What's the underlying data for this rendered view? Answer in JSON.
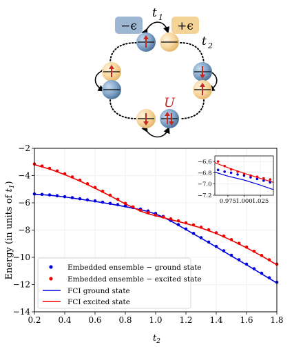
{
  "diagram": {
    "site_energy_minus": "−ϵ",
    "site_energy_plus": "+ϵ",
    "hopping_1": "t",
    "hopping_1_sub": "1",
    "hopping_2": "t",
    "hopping_2_sub": "2",
    "interaction": "U"
  },
  "chart_data": [
    {
      "type": "line",
      "xlabel": "t",
      "xlabel_sub": "2",
      "ylabel": "Energy (in units of ",
      "ylabel_unit": "t",
      "ylabel_unit_sub": "1",
      "ylabel_close": ")",
      "xlim": [
        0.2,
        1.8
      ],
      "ylim": [
        -14,
        -2
      ],
      "xticks": [
        "0.2",
        "0.4",
        "0.6",
        "0.8",
        "1.0",
        "1.2",
        "1.4",
        "1.6",
        "1.8"
      ],
      "yticks": [
        "−14",
        "−12",
        "−10",
        "−8",
        "−6",
        "−4",
        "−2"
      ],
      "grid": true,
      "legend_position": "lower-left",
      "series": [
        {
          "name": "Embedded ensemble − ground state",
          "kind": "points",
          "color": "#0000dd",
          "x": [
            0.2,
            0.25,
            0.3,
            0.35,
            0.4,
            0.45,
            0.5,
            0.55,
            0.6,
            0.65,
            0.7,
            0.75,
            0.8,
            0.85,
            0.9,
            0.95,
            1.0,
            1.05,
            1.1,
            1.15,
            1.2,
            1.25,
            1.3,
            1.35,
            1.4,
            1.45,
            1.5,
            1.55,
            1.6,
            1.65,
            1.7,
            1.75,
            1.8
          ],
          "y": [
            -5.35,
            -5.38,
            -5.42,
            -5.48,
            -5.55,
            -5.62,
            -5.7,
            -5.78,
            -5.86,
            -5.95,
            -6.04,
            -6.13,
            -6.23,
            -6.34,
            -6.46,
            -6.6,
            -6.78,
            -7.0,
            -7.3,
            -7.6,
            -7.92,
            -8.24,
            -8.56,
            -8.88,
            -9.2,
            -9.52,
            -9.85,
            -10.18,
            -10.5,
            -10.84,
            -11.17,
            -11.5,
            -11.83
          ]
        },
        {
          "name": "Embedded ensemble − excited state",
          "kind": "points",
          "color": "#ee0000",
          "x": [
            0.2,
            0.25,
            0.3,
            0.35,
            0.4,
            0.45,
            0.5,
            0.55,
            0.6,
            0.65,
            0.7,
            0.75,
            0.8,
            0.85,
            0.9,
            0.95,
            1.0,
            1.05,
            1.1,
            1.15,
            1.2,
            1.25,
            1.3,
            1.35,
            1.4,
            1.45,
            1.5,
            1.55,
            1.6,
            1.65,
            1.7,
            1.75,
            1.8
          ],
          "y": [
            -3.15,
            -3.3,
            -3.47,
            -3.66,
            -3.87,
            -4.1,
            -4.34,
            -4.6,
            -4.87,
            -5.15,
            -5.44,
            -5.74,
            -6.04,
            -6.3,
            -6.55,
            -6.72,
            -6.9,
            -7.04,
            -7.18,
            -7.32,
            -7.47,
            -7.62,
            -7.79,
            -7.98,
            -8.2,
            -8.44,
            -8.7,
            -8.97,
            -9.25,
            -9.55,
            -9.86,
            -10.18,
            -10.5
          ]
        },
        {
          "name": "FCI ground state",
          "kind": "line",
          "color": "#0000dd",
          "x": [
            0.2,
            0.3,
            0.4,
            0.5,
            0.6,
            0.7,
            0.8,
            0.9,
            0.95,
            1.0,
            1.05,
            1.1,
            1.2,
            1.3,
            1.4,
            1.5,
            1.6,
            1.7,
            1.8
          ],
          "y": [
            -5.37,
            -5.44,
            -5.57,
            -5.73,
            -5.9,
            -6.08,
            -6.28,
            -6.5,
            -6.64,
            -6.82,
            -7.05,
            -7.33,
            -7.96,
            -8.6,
            -9.24,
            -9.9,
            -10.55,
            -11.22,
            -11.88
          ]
        },
        {
          "name": "FCI excited state",
          "kind": "line",
          "color": "#ee0000",
          "x": [
            0.2,
            0.3,
            0.4,
            0.5,
            0.6,
            0.7,
            0.8,
            0.9,
            0.95,
            1.0,
            1.05,
            1.1,
            1.2,
            1.3,
            1.4,
            1.5,
            1.6,
            1.7,
            1.8
          ],
          "y": [
            -3.2,
            -3.52,
            -3.93,
            -4.4,
            -4.93,
            -5.49,
            -6.08,
            -6.6,
            -6.8,
            -6.95,
            -7.09,
            -7.23,
            -7.52,
            -7.84,
            -8.25,
            -8.75,
            -9.3,
            -9.9,
            -10.55
          ]
        }
      ]
    },
    {
      "type": "line",
      "role": "inset",
      "xlim": [
        0.955,
        1.045
      ],
      "ylim": [
        -7.2,
        -6.5
      ],
      "xticks": [
        "0.975",
        "1.000",
        "1.025"
      ],
      "yticks": [
        "−6.6",
        "−6.8",
        "−7.0",
        "−7.2"
      ],
      "grid": true,
      "series": [
        {
          "name": "Embedded ensemble − ground state",
          "kind": "points",
          "color": "#0000dd",
          "x": [
            0.96,
            0.97,
            0.98,
            0.99,
            1.0,
            1.01,
            1.02,
            1.03,
            1.04
          ],
          "y": [
            -6.75,
            -6.78,
            -6.8,
            -6.83,
            -6.85,
            -6.88,
            -6.91,
            -6.94,
            -6.97
          ]
        },
        {
          "name": "Embedded ensemble − excited state",
          "kind": "points",
          "color": "#ee0000",
          "x": [
            0.96,
            0.97,
            0.98,
            0.99,
            1.0,
            1.01,
            1.02,
            1.03,
            1.04
          ],
          "y": [
            -6.6,
            -6.68,
            -6.74,
            -6.78,
            -6.82,
            -6.85,
            -6.87,
            -6.9,
            -6.92
          ]
        },
        {
          "name": "FCI ground state",
          "kind": "line",
          "color": "#0000dd",
          "x": [
            0.955,
            0.975,
            1.0,
            1.025,
            1.045
          ],
          "y": [
            -6.79,
            -6.86,
            -6.93,
            -7.02,
            -7.1
          ]
        },
        {
          "name": "FCI excited state",
          "kind": "line",
          "color": "#ee0000",
          "x": [
            0.955,
            0.975,
            1.0,
            1.025,
            1.045
          ],
          "y": [
            -6.62,
            -6.71,
            -6.81,
            -6.9,
            -6.97
          ]
        }
      ]
    }
  ]
}
